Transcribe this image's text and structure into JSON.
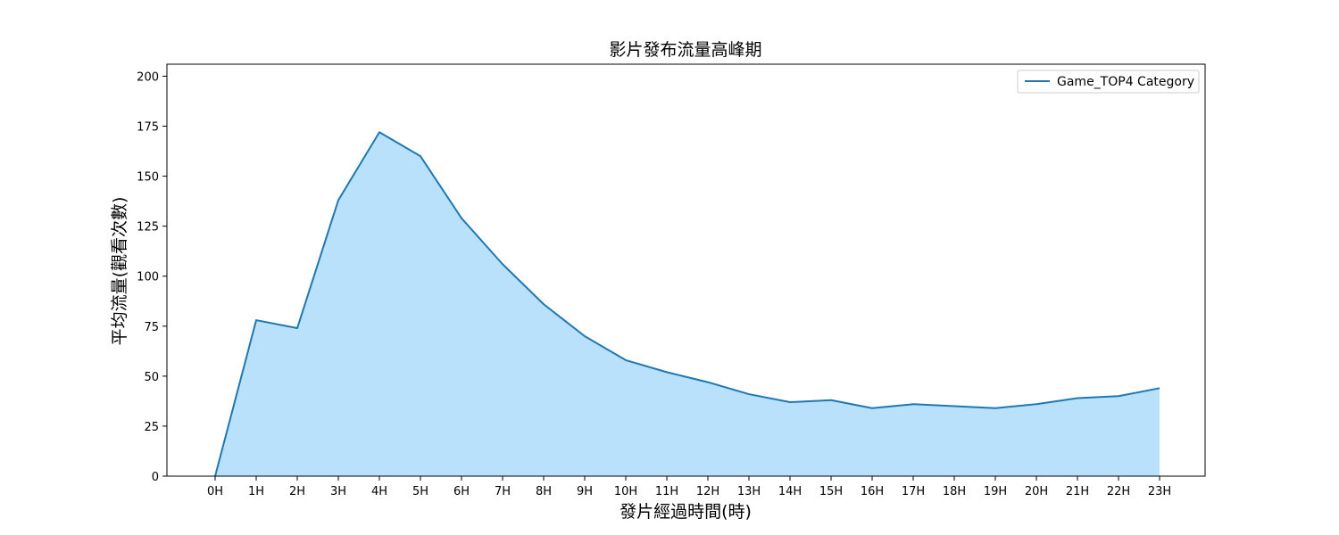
{
  "chart_data": {
    "type": "area",
    "title": "影片發布流量高峰期",
    "xlabel": "發片經過時間(時)",
    "ylabel": "平均流量(觀看次數)",
    "categories": [
      "0H",
      "1H",
      "2H",
      "3H",
      "4H",
      "5H",
      "6H",
      "7H",
      "8H",
      "9H",
      "10H",
      "11H",
      "12H",
      "13H",
      "14H",
      "15H",
      "16H",
      "17H",
      "18H",
      "19H",
      "20H",
      "21H",
      "22H",
      "23H"
    ],
    "series": [
      {
        "name": "Game_TOP4 Category",
        "values": [
          0,
          78,
          74,
          138,
          172,
          160,
          129,
          106,
          86,
          70,
          58,
          52,
          47,
          41,
          37,
          38,
          34,
          36,
          35,
          34,
          36,
          39,
          40,
          44
        ]
      }
    ],
    "ylim": [
      0,
      206
    ],
    "yticks": [
      0,
      25,
      50,
      75,
      100,
      125,
      150,
      175,
      200
    ],
    "grid": false,
    "legend": "top-right",
    "colors": {
      "line": "#1f77b4",
      "fill": "#b9e1fb",
      "axis": "#000000"
    }
  }
}
